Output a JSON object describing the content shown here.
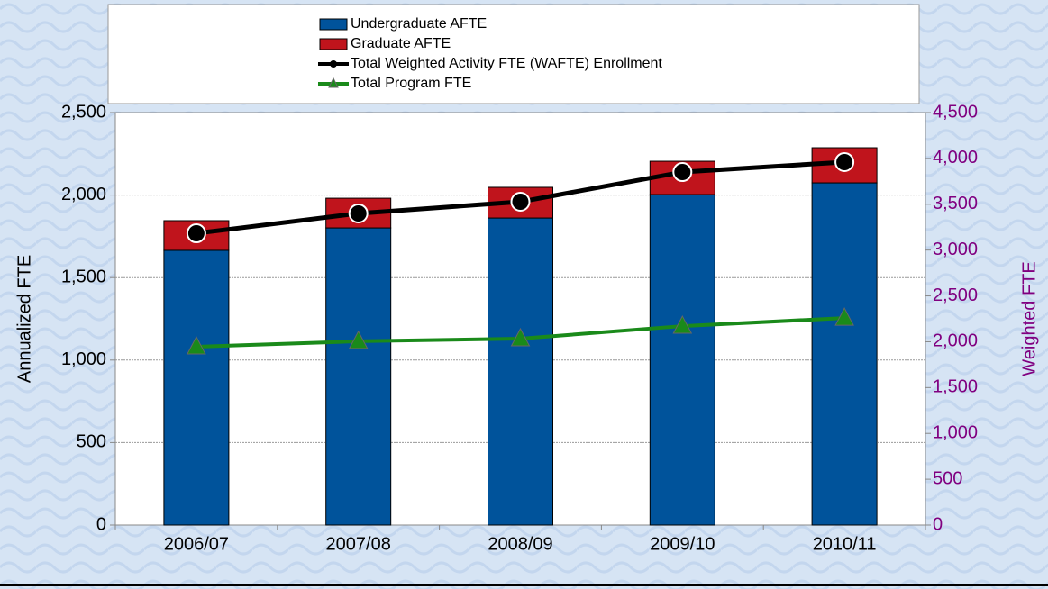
{
  "chart_data": {
    "type": "bar",
    "categories": [
      "2006/07",
      "2007/08",
      "2008/09",
      "2009/10",
      "2010/11"
    ],
    "series": [
      {
        "name": "Undergraduate AFTE",
        "kind": "bar",
        "color": "#00539b",
        "values": [
          1665,
          1801,
          1861,
          2003,
          2074
        ]
      },
      {
        "name": "Graduate AFTE",
        "kind": "bar",
        "color": "#c0141c",
        "values": [
          180,
          180,
          186,
          202,
          213
        ]
      },
      {
        "name": "Total Weighted Activity FTE (WAFTE) Enrollment",
        "kind": "line",
        "marker": "circle",
        "axis": "y2",
        "color": "#000000",
        "values": [
          3183,
          3400,
          3527,
          3851,
          3960
        ]
      },
      {
        "name": "Total Program FTE",
        "kind": "line",
        "marker": "triangle",
        "color": "#1a8a1a",
        "values": [
          1081,
          1114,
          1130,
          1206,
          1255
        ]
      }
    ],
    "y_label": "Annualized FTE",
    "y2_label": "Weighted FTE",
    "ylim": [
      0,
      2500
    ],
    "yticks": [
      0,
      500,
      {
        "value": 1000,
        "label": "1,000"
      },
      {
        "value": 1500,
        "label": "1,500"
      },
      {
        "value": 2000,
        "label": "2,000"
      },
      {
        "value": 2500,
        "label": "2,500"
      }
    ],
    "y2lim": [
      0,
      4500
    ],
    "y2ticks": [
      0,
      500,
      {
        "value": 1000,
        "label": "1,000"
      },
      {
        "value": 1500,
        "label": "1,500"
      },
      {
        "value": 2000,
        "label": "2,000"
      },
      {
        "value": 2500,
        "label": "2,500"
      },
      {
        "value": 3000,
        "label": "3,000"
      },
      {
        "value": 3500,
        "label": "3,500"
      },
      {
        "value": 4000,
        "label": "4,000"
      },
      {
        "value": 4500,
        "label": "4,500"
      }
    ],
    "y2_color": "#800080",
    "grid": true,
    "legend": "top"
  }
}
